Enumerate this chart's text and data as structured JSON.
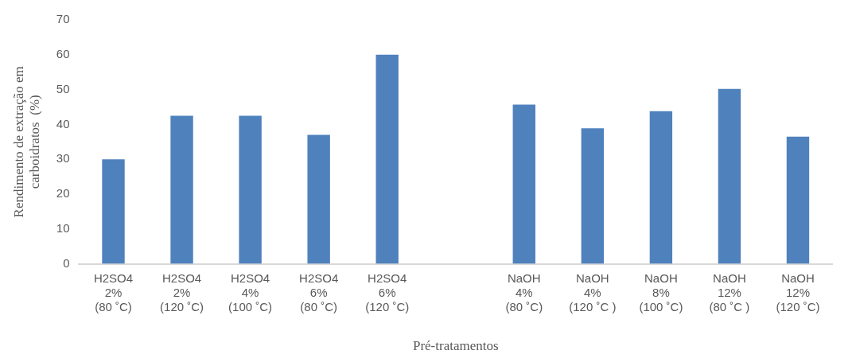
{
  "chart_data": {
    "type": "bar",
    "xlabel": "Pré-tratamentos",
    "ylabel": "Rendimento de extração em\ncarboidratos  (%)",
    "categories": [
      "H2SO4\n2%\n(80 ˚C)",
      "H2SO4\n2%\n(120 ˚C)",
      "H2SO4\n4%\n(100 ˚C)",
      "H2SO4\n6%\n(80 ˚C)",
      "H2SO4\n6%\n(120 ˚C)",
      null,
      "NaOH\n4%\n(80 ˚C)",
      "NaOH\n4%\n(120 ˚C )",
      "NaOH\n8%\n(100 ˚C)",
      "NaOH\n12%\n(80 ˚C )",
      "NaOH\n12%\n(120 ˚C)"
    ],
    "values": [
      30,
      42.5,
      42.5,
      37,
      60,
      null,
      45.7,
      38.9,
      43.8,
      50.2,
      36.5
    ],
    "color": "#4f81bd",
    "ylim": [
      0,
      70
    ],
    "yticks": [
      0,
      10,
      20,
      30,
      40,
      50,
      60,
      70
    ],
    "grid": false,
    "legend": false
  }
}
